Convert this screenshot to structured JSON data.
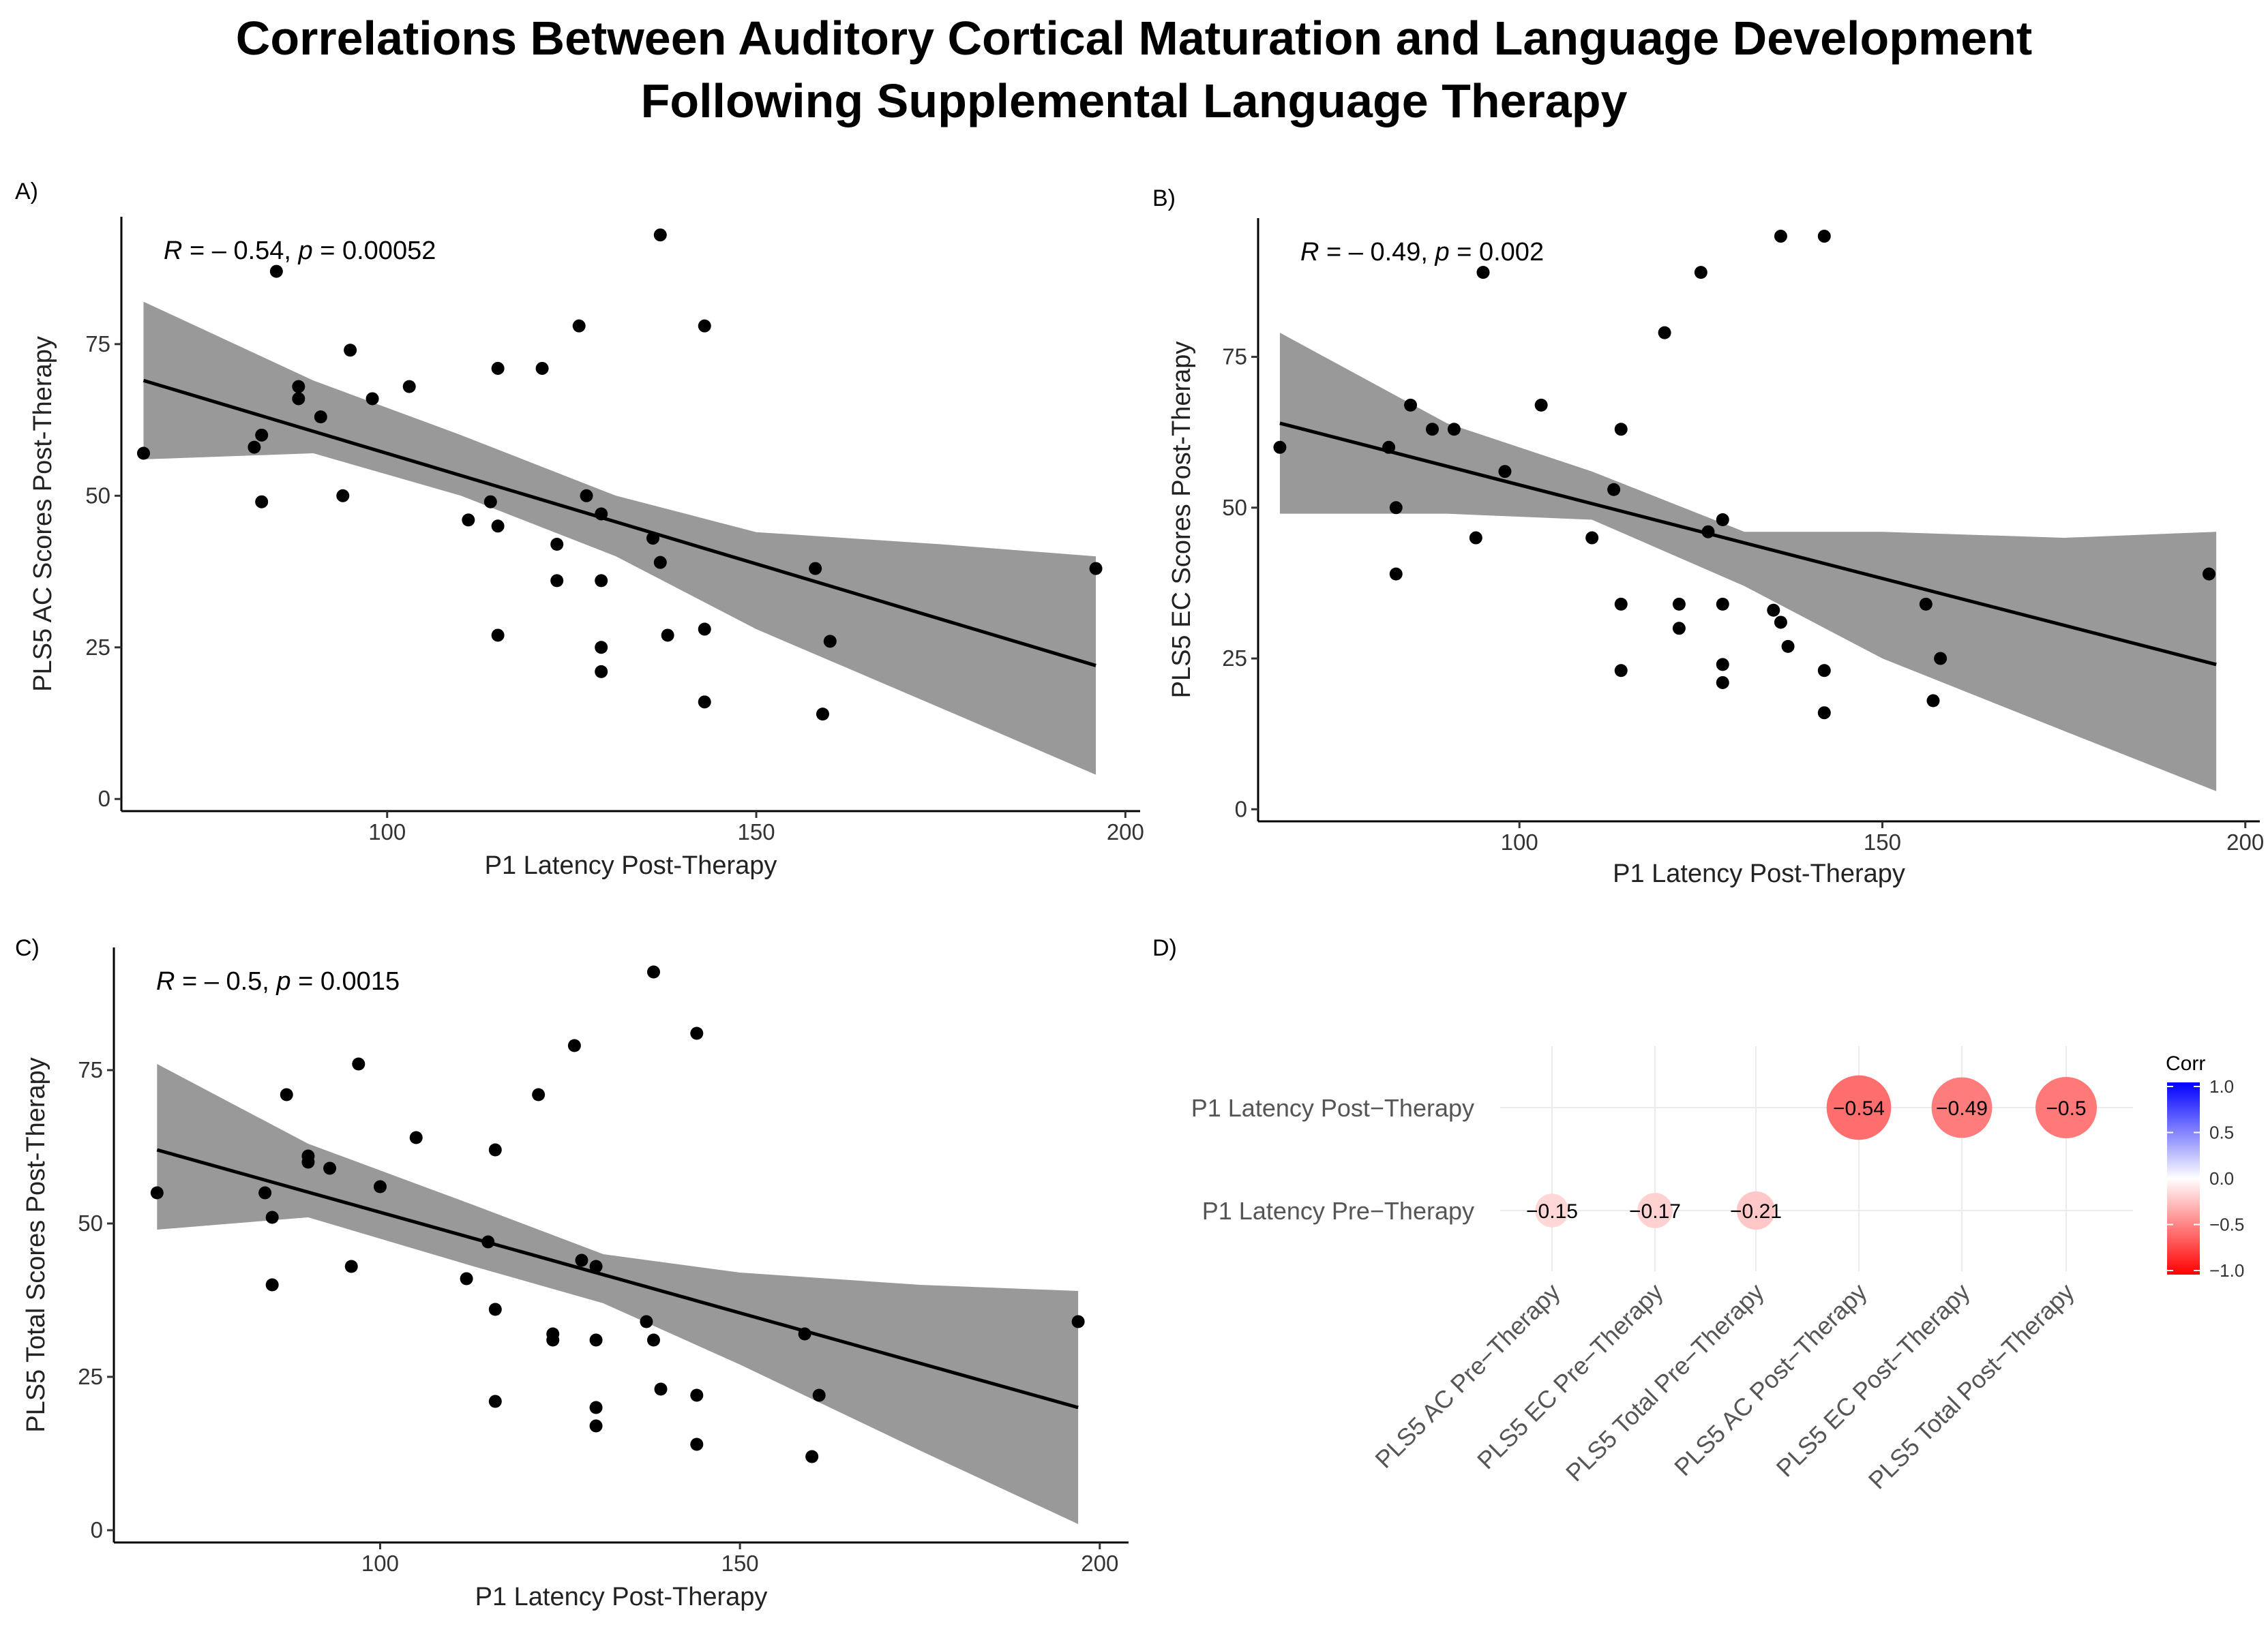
{
  "title_line1": "Correlations Between Auditory Cortical Maturation and Language Development",
  "title_line2": "Following Supplemental Language Therapy",
  "chart_data": [
    {
      "panel": "A)",
      "type": "scatter",
      "xlabel": "P1 Latency Post-Therapy",
      "ylabel": "PLS5 AC Scores Post-Therapy",
      "xlim": [
        64,
        202
      ],
      "ylim": [
        -2,
        96
      ],
      "xticks": [
        100,
        150,
        200
      ],
      "yticks": [
        0,
        25,
        50,
        75
      ],
      "annotation_r": "R",
      "annotation_r_val": " = – 0.54, ",
      "annotation_p": "p",
      "annotation_p_val": " = 0.00052",
      "fit": {
        "x0": 67,
        "y0": 69,
        "x1": 196,
        "y1": 22
      },
      "band": [
        {
          "x": 67,
          "lo": 56,
          "hi": 82
        },
        {
          "x": 90,
          "lo": 57,
          "hi": 69
        },
        {
          "x": 110,
          "lo": 50,
          "hi": 60
        },
        {
          "x": 131,
          "lo": 40,
          "hi": 50
        },
        {
          "x": 150,
          "lo": 28,
          "hi": 44
        },
        {
          "x": 175,
          "lo": 15,
          "hi": 42
        },
        {
          "x": 196,
          "lo": 4,
          "hi": 40
        }
      ],
      "points": [
        [
          67,
          57
        ],
        [
          82,
          58
        ],
        [
          83,
          60
        ],
        [
          83,
          49
        ],
        [
          85,
          87
        ],
        [
          88,
          68
        ],
        [
          88,
          66
        ],
        [
          91,
          63
        ],
        [
          94,
          50
        ],
        [
          95,
          74
        ],
        [
          98,
          66
        ],
        [
          103,
          68
        ],
        [
          111,
          46
        ],
        [
          114,
          49
        ],
        [
          115,
          71
        ],
        [
          115,
          45
        ],
        [
          115,
          27
        ],
        [
          121,
          71
        ],
        [
          123,
          42
        ],
        [
          123,
          36
        ],
        [
          126,
          78
        ],
        [
          127,
          50
        ],
        [
          129,
          47
        ],
        [
          129,
          36
        ],
        [
          129,
          25
        ],
        [
          129,
          21
        ],
        [
          136,
          43
        ],
        [
          137,
          93
        ],
        [
          137,
          39
        ],
        [
          138,
          27
        ],
        [
          143,
          78
        ],
        [
          143,
          28
        ],
        [
          143,
          16
        ],
        [
          158,
          38
        ],
        [
          159,
          14
        ],
        [
          160,
          26
        ],
        [
          196,
          38
        ]
      ]
    },
    {
      "panel": "B)",
      "type": "scatter",
      "xlabel": "P1 Latency Post-Therapy",
      "ylabel": "PLS5 EC Scores Post-Therapy",
      "xlim": [
        64,
        202
      ],
      "ylim": [
        -2,
        98
      ],
      "xticks": [
        100,
        150,
        200
      ],
      "yticks": [
        0,
        25,
        50,
        75
      ],
      "annotation_r": "R",
      "annotation_r_val": " = – 0.49, ",
      "annotation_p": "p",
      "annotation_p_val": " = 0.002",
      "fit": {
        "x0": 67,
        "y0": 64,
        "x1": 196,
        "y1": 24
      },
      "band": [
        {
          "x": 67,
          "lo": 49,
          "hi": 79
        },
        {
          "x": 90,
          "lo": 49,
          "hi": 64
        },
        {
          "x": 110,
          "lo": 48,
          "hi": 56
        },
        {
          "x": 131,
          "lo": 37,
          "hi": 46
        },
        {
          "x": 150,
          "lo": 25,
          "hi": 46
        },
        {
          "x": 175,
          "lo": 13,
          "hi": 45
        },
        {
          "x": 196,
          "lo": 3,
          "hi": 46
        }
      ],
      "points": [
        [
          67,
          60
        ],
        [
          82,
          60
        ],
        [
          83,
          50
        ],
        [
          83,
          39
        ],
        [
          85,
          67
        ],
        [
          88,
          63
        ],
        [
          91,
          63
        ],
        [
          94,
          45
        ],
        [
          95,
          89
        ],
        [
          98,
          56
        ],
        [
          103,
          67
        ],
        [
          110,
          45
        ],
        [
          113,
          53
        ],
        [
          114,
          63
        ],
        [
          114,
          34
        ],
        [
          114,
          23
        ],
        [
          120,
          79
        ],
        [
          122,
          34
        ],
        [
          122,
          30
        ],
        [
          125,
          89
        ],
        [
          126,
          46
        ],
        [
          128,
          48
        ],
        [
          128,
          34
        ],
        [
          128,
          24
        ],
        [
          128,
          21
        ],
        [
          135,
          33
        ],
        [
          136,
          95
        ],
        [
          136,
          31
        ],
        [
          137,
          27
        ],
        [
          142,
          95
        ],
        [
          142,
          23
        ],
        [
          142,
          16
        ],
        [
          156,
          34
        ],
        [
          157,
          18
        ],
        [
          158,
          25
        ],
        [
          195,
          39
        ]
      ]
    },
    {
      "panel": "C)",
      "type": "scatter",
      "xlabel": "P1 Latency Post-Therapy",
      "ylabel": "PLS5 Total Scores Post-Therapy",
      "xlim": [
        63,
        204
      ],
      "ylim": [
        -2,
        95
      ],
      "xticks": [
        100,
        150,
        200
      ],
      "yticks": [
        0,
        25,
        50,
        75
      ],
      "annotation_r": "R",
      "annotation_r_val": " = – 0.5, ",
      "annotation_p": "p",
      "annotation_p_val": " = 0.0015",
      "fit": {
        "x0": 69,
        "y0": 62,
        "x1": 197,
        "y1": 20
      },
      "band": [
        {
          "x": 69,
          "lo": 49,
          "hi": 76
        },
        {
          "x": 90,
          "lo": 51,
          "hi": 63
        },
        {
          "x": 113,
          "lo": 43,
          "hi": 53
        },
        {
          "x": 131,
          "lo": 37,
          "hi": 45
        },
        {
          "x": 150,
          "lo": 27,
          "hi": 42
        },
        {
          "x": 175,
          "lo": 13,
          "hi": 40
        },
        {
          "x": 197,
          "lo": 1,
          "hi": 39
        }
      ],
      "points": [
        [
          69,
          55
        ],
        [
          84,
          55
        ],
        [
          85,
          51
        ],
        [
          85,
          40
        ],
        [
          87,
          71
        ],
        [
          90,
          61
        ],
        [
          90,
          60
        ],
        [
          93,
          59
        ],
        [
          96,
          43
        ],
        [
          97,
          76
        ],
        [
          100,
          56
        ],
        [
          105,
          64
        ],
        [
          112,
          41
        ],
        [
          115,
          47
        ],
        [
          116,
          62
        ],
        [
          116,
          36
        ],
        [
          116,
          21
        ],
        [
          122,
          71
        ],
        [
          124,
          32
        ],
        [
          124,
          31
        ],
        [
          127,
          79
        ],
        [
          128,
          44
        ],
        [
          130,
          43
        ],
        [
          130,
          31
        ],
        [
          130,
          20
        ],
        [
          130,
          17
        ],
        [
          137,
          34
        ],
        [
          138,
          91
        ],
        [
          138,
          31
        ],
        [
          139,
          23
        ],
        [
          144,
          81
        ],
        [
          144,
          22
        ],
        [
          144,
          14
        ],
        [
          159,
          32
        ],
        [
          160,
          12
        ],
        [
          161,
          22
        ],
        [
          197,
          34
        ]
      ]
    },
    {
      "panel": "D)",
      "type": "heatmap",
      "rows": [
        "P1 Latency Post−Therapy",
        "P1 Latency Pre−Therapy"
      ],
      "cols": [
        "PLS5 AC Pre−Therapy",
        "PLS5 EC Pre−Therapy",
        "PLS5 Total Pre−Therapy",
        "PLS5 AC Post−Therapy",
        "PLS5 EC Post−Therapy",
        "PLS5 Total Post−Therapy"
      ],
      "cells": [
        {
          "row": 0,
          "col": 3,
          "value": -0.54,
          "label": "−0.54"
        },
        {
          "row": 0,
          "col": 4,
          "value": -0.49,
          "label": "−0.49"
        },
        {
          "row": 0,
          "col": 5,
          "value": -0.5,
          "label": "−0.5"
        },
        {
          "row": 1,
          "col": 0,
          "value": -0.15,
          "label": "−0.15"
        },
        {
          "row": 1,
          "col": 1,
          "value": -0.17,
          "label": "−0.17"
        },
        {
          "row": 1,
          "col": 2,
          "value": -0.21,
          "label": "−0.21"
        }
      ],
      "legend_title": "Corr",
      "legend_ticks": [
        "1.0",
        "0.5",
        "0.0",
        "−0.5",
        "−1.0"
      ],
      "colors": {
        "low": "#ff0000",
        "mid": "#ffffff",
        "high": "#0000ff"
      }
    }
  ]
}
